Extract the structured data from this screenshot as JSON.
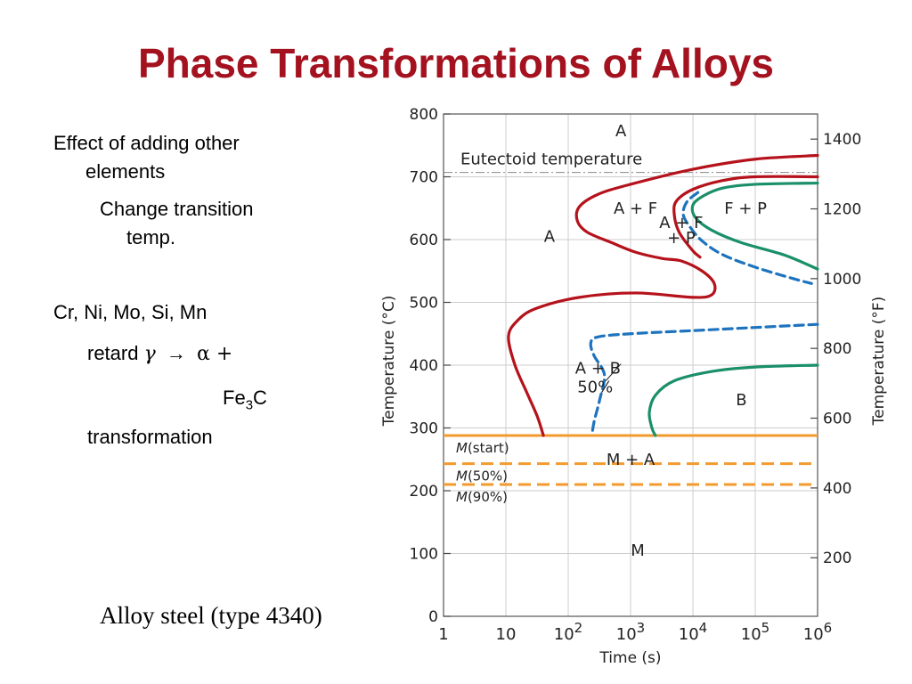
{
  "slide": {
    "title": "Phase Transformations of Alloys",
    "bullets": {
      "effect_line1": "Effect of adding other",
      "effect_line2": "elements",
      "change_line1": "Change transition",
      "change_line2": "temp.",
      "elements": "Cr, Ni, Mo, Si, Mn",
      "retard": "retard",
      "gamma": "γ",
      "arrow": "→",
      "alpha_plus": "α +",
      "fe": "Fe",
      "fe_sub": "3",
      "fe_c": "C",
      "transformation": "transformation"
    },
    "caption": "Alloy steel (type 4340)"
  },
  "chart_data": {
    "type": "line",
    "xlabel": "Time (s)",
    "ylabel_left": "Temperature (°C)",
    "ylabel_right": "Temperature (°F)",
    "x_scale": "log",
    "xlim": [
      1,
      1000000
    ],
    "ylim": [
      0,
      800
    ],
    "x_ticks": [
      1,
      10,
      100,
      1000,
      10000,
      100000,
      1000000
    ],
    "x_tick_labels": [
      {
        "base": "1",
        "exp": ""
      },
      {
        "base": "10",
        "exp": ""
      },
      {
        "base": "10",
        "exp": "2"
      },
      {
        "base": "10",
        "exp": "3"
      },
      {
        "base": "10",
        "exp": "4"
      },
      {
        "base": "10",
        "exp": "5"
      },
      {
        "base": "10",
        "exp": "6"
      }
    ],
    "y_ticks": [
      0,
      100,
      200,
      300,
      400,
      500,
      600,
      700,
      800
    ],
    "y_right_ticks": [
      {
        "label": "200",
        "celsius": 93.3
      },
      {
        "label": "400",
        "celsius": 204.4
      },
      {
        "label": "600",
        "celsius": 315.6
      },
      {
        "label": "800",
        "celsius": 426.7
      },
      {
        "label": "1000",
        "celsius": 537.8
      },
      {
        "label": "1200",
        "celsius": 648.9
      },
      {
        "label": "1400",
        "celsius": 760
      }
    ],
    "grid": true,
    "reference_lines": [
      {
        "label": "Eutectoid temperature",
        "y": 707,
        "style": "dashdot",
        "color": "#888888"
      },
      {
        "label": "M(start)",
        "y": 288,
        "style": "solid",
        "color": "#f29a2e"
      },
      {
        "label": "M(50%)",
        "y": 243,
        "style": "dashed",
        "color": "#f29a2e"
      },
      {
        "label": "M(90%)",
        "y": 210,
        "style": "dashed",
        "color": "#f29a2e"
      }
    ],
    "series": [
      {
        "color": "#b5121b",
        "style": "solid",
        "points": [
          [
            1000000,
            734
          ],
          [
            100000,
            728
          ],
          [
            10000,
            712
          ],
          [
            1000,
            688
          ],
          [
            300,
            672
          ],
          [
            150,
            652
          ],
          [
            140,
            630
          ],
          [
            200,
            612
          ],
          [
            500,
            595
          ],
          [
            1200,
            580
          ],
          [
            3200,
            570
          ],
          [
            6500,
            566
          ],
          [
            14000,
            550
          ],
          [
            22000,
            530
          ],
          [
            20000,
            512
          ],
          [
            10000,
            508
          ],
          [
            1200,
            515
          ],
          [
            150,
            508
          ],
          [
            30,
            490
          ],
          [
            15,
            470
          ],
          [
            11,
            445
          ],
          [
            14,
            400
          ],
          [
            22,
            355
          ],
          [
            32,
            318
          ],
          [
            40,
            288
          ]
        ]
      },
      {
        "color": "#b5121b",
        "style": "solid",
        "points": [
          [
            1000000,
            700
          ],
          [
            100000,
            700
          ],
          [
            30000,
            694
          ],
          [
            10000,
            680
          ],
          [
            5500,
            662
          ],
          [
            5000,
            642
          ],
          [
            6000,
            612
          ],
          [
            10000,
            582
          ],
          [
            13000,
            572
          ]
        ]
      },
      {
        "color": "#1e73be",
        "style": "dashed",
        "points": [
          [
            12000,
            675
          ],
          [
            8000,
            660
          ],
          [
            7000,
            640
          ],
          [
            9000,
            620
          ],
          [
            14000,
            598
          ],
          [
            30000,
            576
          ],
          [
            100000,
            556
          ],
          [
            400000,
            538
          ],
          [
            800000,
            530
          ]
        ]
      },
      {
        "color": "#1e73be",
        "style": "dashed",
        "points": [
          [
            1000000,
            465
          ],
          [
            100000,
            460
          ],
          [
            10000,
            455
          ],
          [
            1000,
            450
          ],
          [
            300,
            445
          ],
          [
            230,
            435
          ],
          [
            260,
            415
          ],
          [
            380,
            385
          ],
          [
            320,
            345
          ],
          [
            260,
            310
          ],
          [
            240,
            288
          ]
        ]
      },
      {
        "color": "#1a8f6a",
        "style": "solid",
        "points": [
          [
            1000000,
            690
          ],
          [
            100000,
            688
          ],
          [
            30000,
            682
          ],
          [
            15000,
            670
          ],
          [
            10000,
            655
          ],
          [
            11000,
            635
          ],
          [
            20000,
            615
          ],
          [
            60000,
            595
          ],
          [
            300000,
            575
          ],
          [
            1000000,
            553
          ]
        ]
      },
      {
        "color": "#1a8f6a",
        "style": "solid",
        "points": [
          [
            1000000,
            400
          ],
          [
            100000,
            397
          ],
          [
            20000,
            390
          ],
          [
            5000,
            375
          ],
          [
            2500,
            352
          ],
          [
            2000,
            325
          ],
          [
            2200,
            300
          ],
          [
            2500,
            288
          ]
        ]
      }
    ],
    "region_labels": [
      {
        "text": "A",
        "x": 700,
        "y": 773
      },
      {
        "text": "A",
        "x": 50,
        "y": 605
      },
      {
        "text": "A + F",
        "x": 1200,
        "y": 650
      },
      {
        "text": "F + P",
        "x": 70000,
        "y": 650
      },
      {
        "text": "A + F",
        "x": 6500,
        "y": 627
      },
      {
        "text": "+ P",
        "x": 6500,
        "y": 603
      },
      {
        "text": "A + B",
        "x": 300,
        "y": 395
      },
      {
        "text": "50%",
        "x": 270,
        "y": 365
      },
      {
        "text": "B",
        "x": 60000,
        "y": 345
      },
      {
        "text": "M + A",
        "x": 1000,
        "y": 250
      },
      {
        "text": "M",
        "x": 1300,
        "y": 105
      }
    ],
    "pointer": {
      "from": [
        400,
        375
      ],
      "to": [
        700,
        402
      ]
    }
  }
}
